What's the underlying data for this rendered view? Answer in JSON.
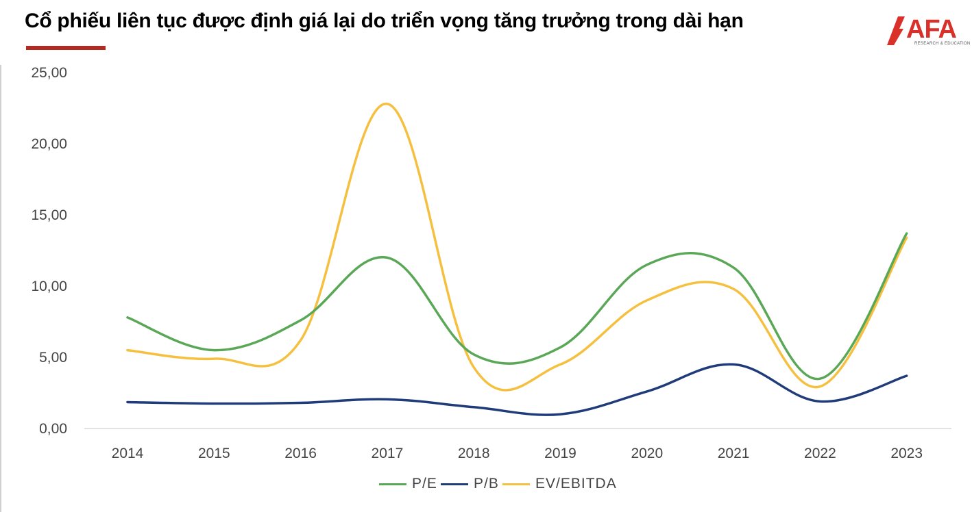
{
  "title": "Cổ phiếu liên tục được định giá lại do triển vọng tăng trưởng trong dài hạn",
  "logo": {
    "text": "AFA",
    "subtext": "RESEARCH & EDUCATION",
    "color": "#d9302a"
  },
  "colors": {
    "accent_underline": "#b22a22",
    "axis": "#d9d9d9",
    "tick_text": "#444444"
  },
  "chart_data": {
    "type": "line",
    "smooth": true,
    "categories": [
      "2014",
      "2015",
      "2016",
      "2017",
      "2018",
      "2019",
      "2020",
      "2021",
      "2022",
      "2023"
    ],
    "ylim": [
      0,
      25
    ],
    "yticks": [
      "0,00",
      "5,00",
      "10,00",
      "15,00",
      "20,00",
      "25,00"
    ],
    "ytick_values": [
      0,
      5,
      10,
      15,
      20,
      25
    ],
    "grid": false,
    "legend_position": "bottom",
    "series": [
      {
        "name": "P/E",
        "color": "#5aa857",
        "values": [
          7.8,
          5.5,
          7.6,
          12.0,
          5.2,
          5.7,
          11.5,
          11.3,
          3.5,
          13.7
        ]
      },
      {
        "name": "P/B",
        "color": "#1f3b7a",
        "values": [
          1.85,
          1.75,
          1.8,
          2.05,
          1.5,
          1.0,
          2.6,
          4.5,
          1.9,
          3.7
        ]
      },
      {
        "name": "EV/EBITDA",
        "color": "#f5c040",
        "values": [
          5.5,
          4.9,
          6.2,
          22.8,
          4.3,
          4.5,
          9.0,
          9.8,
          2.95,
          13.4
        ]
      }
    ]
  }
}
